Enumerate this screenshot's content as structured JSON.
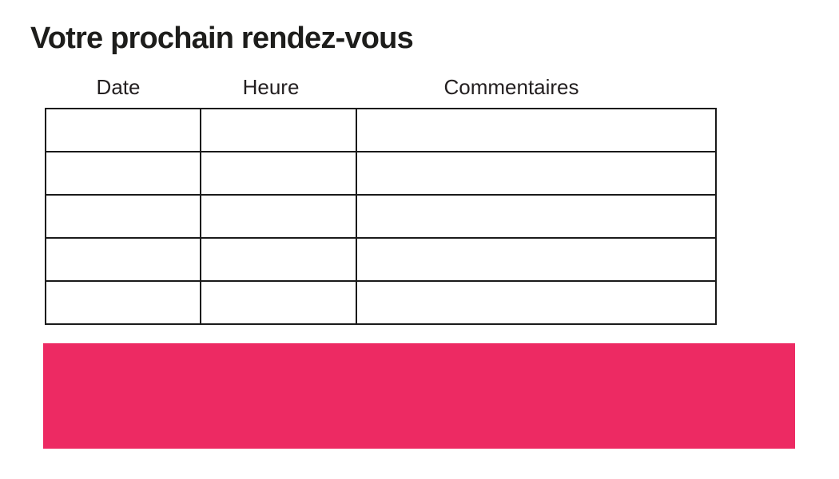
{
  "page": {
    "title": "Votre prochain rendez-vous"
  },
  "table": {
    "headers": [
      "Date",
      "Heure",
      "Commentaires"
    ],
    "rows": [
      [
        "",
        "",
        ""
      ],
      [
        "",
        "",
        ""
      ],
      [
        "",
        "",
        ""
      ],
      [
        "",
        "",
        ""
      ],
      [
        "",
        "",
        ""
      ]
    ]
  },
  "banner": {
    "label": "",
    "color": "#ed2a63"
  },
  "colors": {
    "title_text": "#1d1d1b",
    "header_text": "#231f20",
    "table_border": "#1a1a1a",
    "background": "#ffffff"
  }
}
